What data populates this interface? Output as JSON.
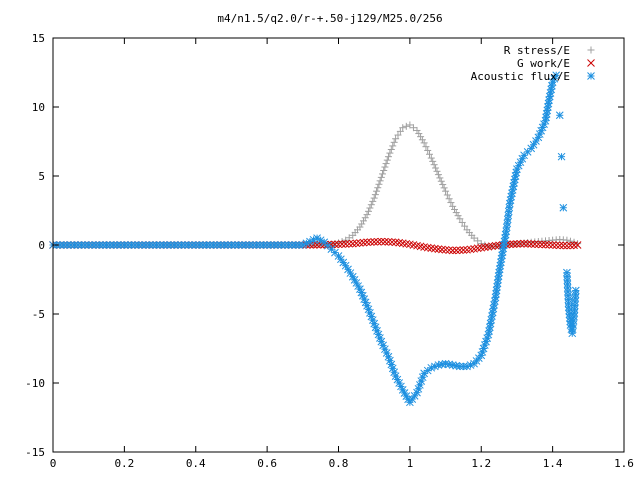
{
  "chart_data": {
    "type": "scatter",
    "title": "m4/n1.5/q2.0/r-+.50-j129/M25.0/256",
    "xlabel": "",
    "ylabel": "",
    "xlim": [
      0,
      1.6
    ],
    "ylim": [
      -15,
      15
    ],
    "xticks": [
      "0",
      "0.2",
      "0.4",
      "0.6",
      "0.8",
      "1",
      "1.2",
      "1.4",
      "1.6"
    ],
    "yticks": [
      "15",
      "10",
      "5",
      "0",
      "-5",
      "-10",
      "-15"
    ],
    "grid": false,
    "legend_position": "top-right",
    "series": [
      {
        "name": "R stress/E",
        "marker": "plus",
        "color": "#a0a0a0",
        "points": [
          [
            0.0,
            0
          ],
          [
            0.1,
            0
          ],
          [
            0.2,
            0
          ],
          [
            0.3,
            0
          ],
          [
            0.4,
            0
          ],
          [
            0.5,
            0
          ],
          [
            0.6,
            0
          ],
          [
            0.7,
            0
          ],
          [
            0.76,
            0.02
          ],
          [
            0.78,
            0.05
          ],
          [
            0.8,
            0.15
          ],
          [
            0.82,
            0.35
          ],
          [
            0.84,
            0.7
          ],
          [
            0.86,
            1.3
          ],
          [
            0.88,
            2.2
          ],
          [
            0.9,
            3.4
          ],
          [
            0.92,
            4.9
          ],
          [
            0.94,
            6.4
          ],
          [
            0.96,
            7.7
          ],
          [
            0.98,
            8.5
          ],
          [
            1.0,
            8.7
          ],
          [
            1.02,
            8.3
          ],
          [
            1.04,
            7.4
          ],
          [
            1.06,
            6.3
          ],
          [
            1.08,
            5.1
          ],
          [
            1.1,
            3.9
          ],
          [
            1.12,
            2.8
          ],
          [
            1.14,
            1.9
          ],
          [
            1.16,
            1.1
          ],
          [
            1.18,
            0.5
          ],
          [
            1.2,
            0.1
          ],
          [
            1.22,
            -0.1
          ],
          [
            1.24,
            -0.1
          ],
          [
            1.26,
            0.0
          ],
          [
            1.28,
            0.05
          ],
          [
            1.3,
            0.1
          ],
          [
            1.32,
            0.15
          ],
          [
            1.34,
            0.2
          ],
          [
            1.36,
            0.25
          ],
          [
            1.38,
            0.3
          ],
          [
            1.4,
            0.35
          ],
          [
            1.42,
            0.4
          ],
          [
            1.44,
            0.35
          ],
          [
            1.46,
            0.2
          ],
          [
            1.47,
            0.1
          ]
        ]
      },
      {
        "name": "G work/E",
        "marker": "cross",
        "color": "#cc0000",
        "points": [
          [
            0.0,
            0
          ],
          [
            0.1,
            0
          ],
          [
            0.2,
            0
          ],
          [
            0.3,
            0
          ],
          [
            0.4,
            0
          ],
          [
            0.5,
            0
          ],
          [
            0.6,
            0
          ],
          [
            0.7,
            0
          ],
          [
            0.76,
            0.02
          ],
          [
            0.8,
            0.05
          ],
          [
            0.84,
            0.1
          ],
          [
            0.88,
            0.2
          ],
          [
            0.92,
            0.25
          ],
          [
            0.96,
            0.2
          ],
          [
            1.0,
            0.05
          ],
          [
            1.04,
            -0.15
          ],
          [
            1.08,
            -0.3
          ],
          [
            1.12,
            -0.4
          ],
          [
            1.16,
            -0.35
          ],
          [
            1.2,
            -0.2
          ],
          [
            1.24,
            -0.05
          ],
          [
            1.28,
            0.05
          ],
          [
            1.32,
            0.1
          ],
          [
            1.36,
            0.05
          ],
          [
            1.4,
            0.0
          ],
          [
            1.44,
            -0.05
          ],
          [
            1.47,
            0.0
          ]
        ]
      },
      {
        "name": "Acoustic flux/E",
        "marker": "star",
        "color": "#1e90e0",
        "points": [
          [
            0.0,
            0
          ],
          [
            0.1,
            0
          ],
          [
            0.2,
            0
          ],
          [
            0.3,
            0
          ],
          [
            0.4,
            0
          ],
          [
            0.5,
            0
          ],
          [
            0.6,
            0
          ],
          [
            0.7,
            0
          ],
          [
            0.74,
            0.5
          ],
          [
            0.76,
            0.2
          ],
          [
            0.78,
            -0.3
          ],
          [
            0.8,
            -0.8
          ],
          [
            0.82,
            -1.5
          ],
          [
            0.84,
            -2.3
          ],
          [
            0.86,
            -3.2
          ],
          [
            0.88,
            -4.4
          ],
          [
            0.9,
            -5.7
          ],
          [
            0.92,
            -7.0
          ],
          [
            0.94,
            -8.1
          ],
          [
            0.96,
            -9.5
          ],
          [
            0.98,
            -10.5
          ],
          [
            1.0,
            -11.4
          ],
          [
            1.02,
            -10.7
          ],
          [
            1.04,
            -9.3
          ],
          [
            1.06,
            -8.9
          ],
          [
            1.08,
            -8.7
          ],
          [
            1.1,
            -8.6
          ],
          [
            1.12,
            -8.7
          ],
          [
            1.14,
            -8.8
          ],
          [
            1.16,
            -8.8
          ],
          [
            1.18,
            -8.6
          ],
          [
            1.2,
            -8.0
          ],
          [
            1.22,
            -6.5
          ],
          [
            1.24,
            -3.8
          ],
          [
            1.25,
            -2.0
          ],
          [
            1.26,
            -0.5
          ],
          [
            1.27,
            1.0
          ],
          [
            1.28,
            3.0
          ],
          [
            1.3,
            5.5
          ],
          [
            1.32,
            6.5
          ],
          [
            1.34,
            7.0
          ],
          [
            1.36,
            7.8
          ],
          [
            1.38,
            9.0
          ],
          [
            1.39,
            10.5
          ],
          [
            1.4,
            11.8
          ],
          [
            1.41,
            12.3
          ],
          [
            1.42,
            9.4
          ],
          [
            1.425,
            6.4
          ],
          [
            1.43,
            2.7
          ],
          [
            1.44,
            -2.0
          ],
          [
            1.445,
            -4.5
          ],
          [
            1.45,
            -5.8
          ],
          [
            1.455,
            -6.4
          ],
          [
            1.46,
            -5.2
          ],
          [
            1.465,
            -3.3
          ]
        ]
      }
    ]
  }
}
